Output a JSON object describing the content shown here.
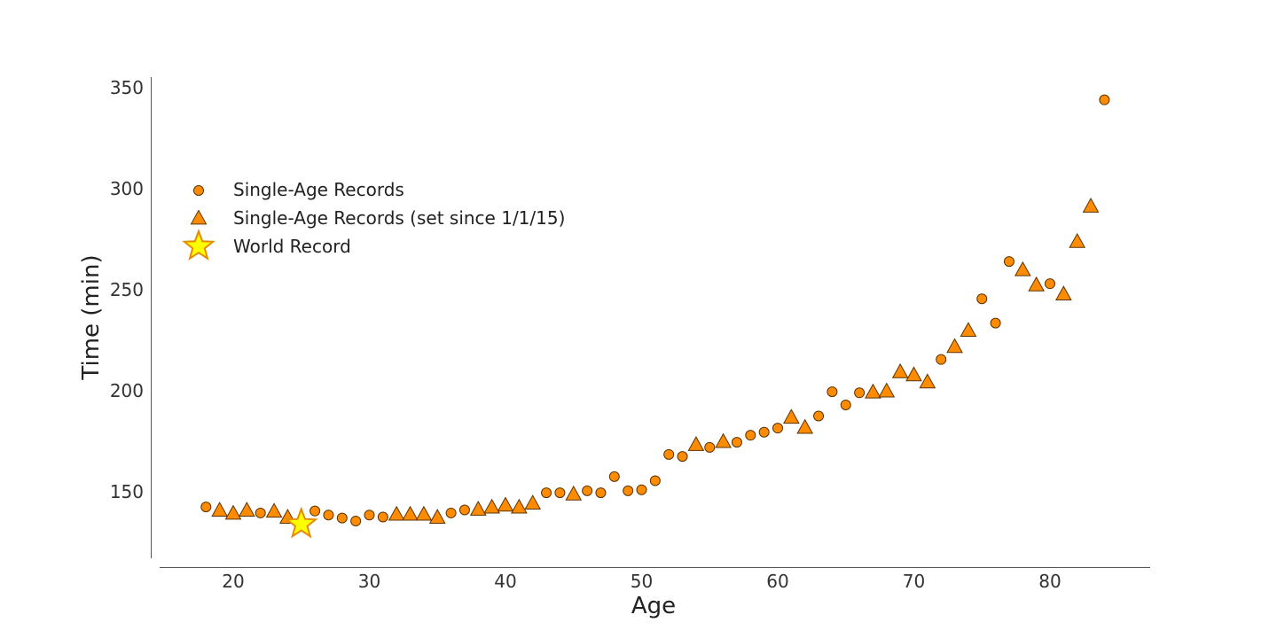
{
  "chart_data": {
    "type": "scatter",
    "title": "",
    "xlabel": "Age",
    "ylabel": "Time (min)",
    "xlim": [
      15,
      87
    ],
    "ylim": [
      118,
      355
    ],
    "xticks": [
      20,
      30,
      40,
      50,
      60,
      70,
      80
    ],
    "yticks": [
      150,
      200,
      250,
      300,
      350
    ],
    "grid": false,
    "legend_position": "upper-left",
    "colors": {
      "marker_fill": "#FF8C00",
      "marker_edge": "#5a3300",
      "star_fill": "#FFFF00",
      "star_edge": "#E68A00"
    },
    "series": [
      {
        "name": "Single-Age Records",
        "marker": "circle",
        "points": [
          [
            18,
            142.5
          ],
          [
            22,
            139.5
          ],
          [
            26,
            140.5
          ],
          [
            27,
            138.5
          ],
          [
            28,
            137
          ],
          [
            29,
            135.5
          ],
          [
            30,
            138.5
          ],
          [
            31,
            137.5
          ],
          [
            36,
            139.5
          ],
          [
            37,
            141
          ],
          [
            43,
            149.5
          ],
          [
            44,
            149.5
          ],
          [
            46,
            150.5
          ],
          [
            47,
            149.5
          ],
          [
            48,
            157.5
          ],
          [
            49,
            150.5
          ],
          [
            50,
            151
          ],
          [
            51,
            155.5
          ],
          [
            52,
            168.5
          ],
          [
            53,
            167.5
          ],
          [
            55,
            172
          ],
          [
            57,
            174.5
          ],
          [
            58,
            178
          ],
          [
            59,
            179.5
          ],
          [
            60,
            181.5
          ],
          [
            63,
            187.5
          ],
          [
            64,
            199.5
          ],
          [
            65,
            193
          ],
          [
            66,
            199
          ],
          [
            72,
            215.5
          ],
          [
            75,
            245.5
          ],
          [
            76,
            233.5
          ],
          [
            77,
            264
          ],
          [
            80,
            253
          ],
          [
            84,
            344
          ]
        ]
      },
      {
        "name": "Single-Age Records (set since 1/1/15)",
        "marker": "triangle",
        "points": [
          [
            19,
            140.5
          ],
          [
            20,
            139
          ],
          [
            21,
            140.5
          ],
          [
            23,
            140
          ],
          [
            24,
            137
          ],
          [
            32,
            138.5
          ],
          [
            33,
            138.5
          ],
          [
            34,
            138.5
          ],
          [
            35,
            137
          ],
          [
            38,
            141
          ],
          [
            39,
            142
          ],
          [
            40,
            143
          ],
          [
            41,
            142
          ],
          [
            42,
            144
          ],
          [
            45,
            148.5
          ],
          [
            54,
            173
          ],
          [
            56,
            174.5
          ],
          [
            61,
            186.5
          ],
          [
            62,
            181.5
          ],
          [
            67,
            199
          ],
          [
            68,
            199.5
          ],
          [
            69,
            209
          ],
          [
            70,
            207.5
          ],
          [
            71,
            204
          ],
          [
            73,
            221.5
          ],
          [
            74,
            229.5
          ],
          [
            78,
            259.5
          ],
          [
            79,
            252
          ],
          [
            81,
            247.5
          ],
          [
            82,
            273.5
          ],
          [
            83,
            291
          ]
        ]
      },
      {
        "name": "World Record",
        "marker": "star",
        "points": [
          [
            25,
            134
          ]
        ]
      }
    ]
  }
}
